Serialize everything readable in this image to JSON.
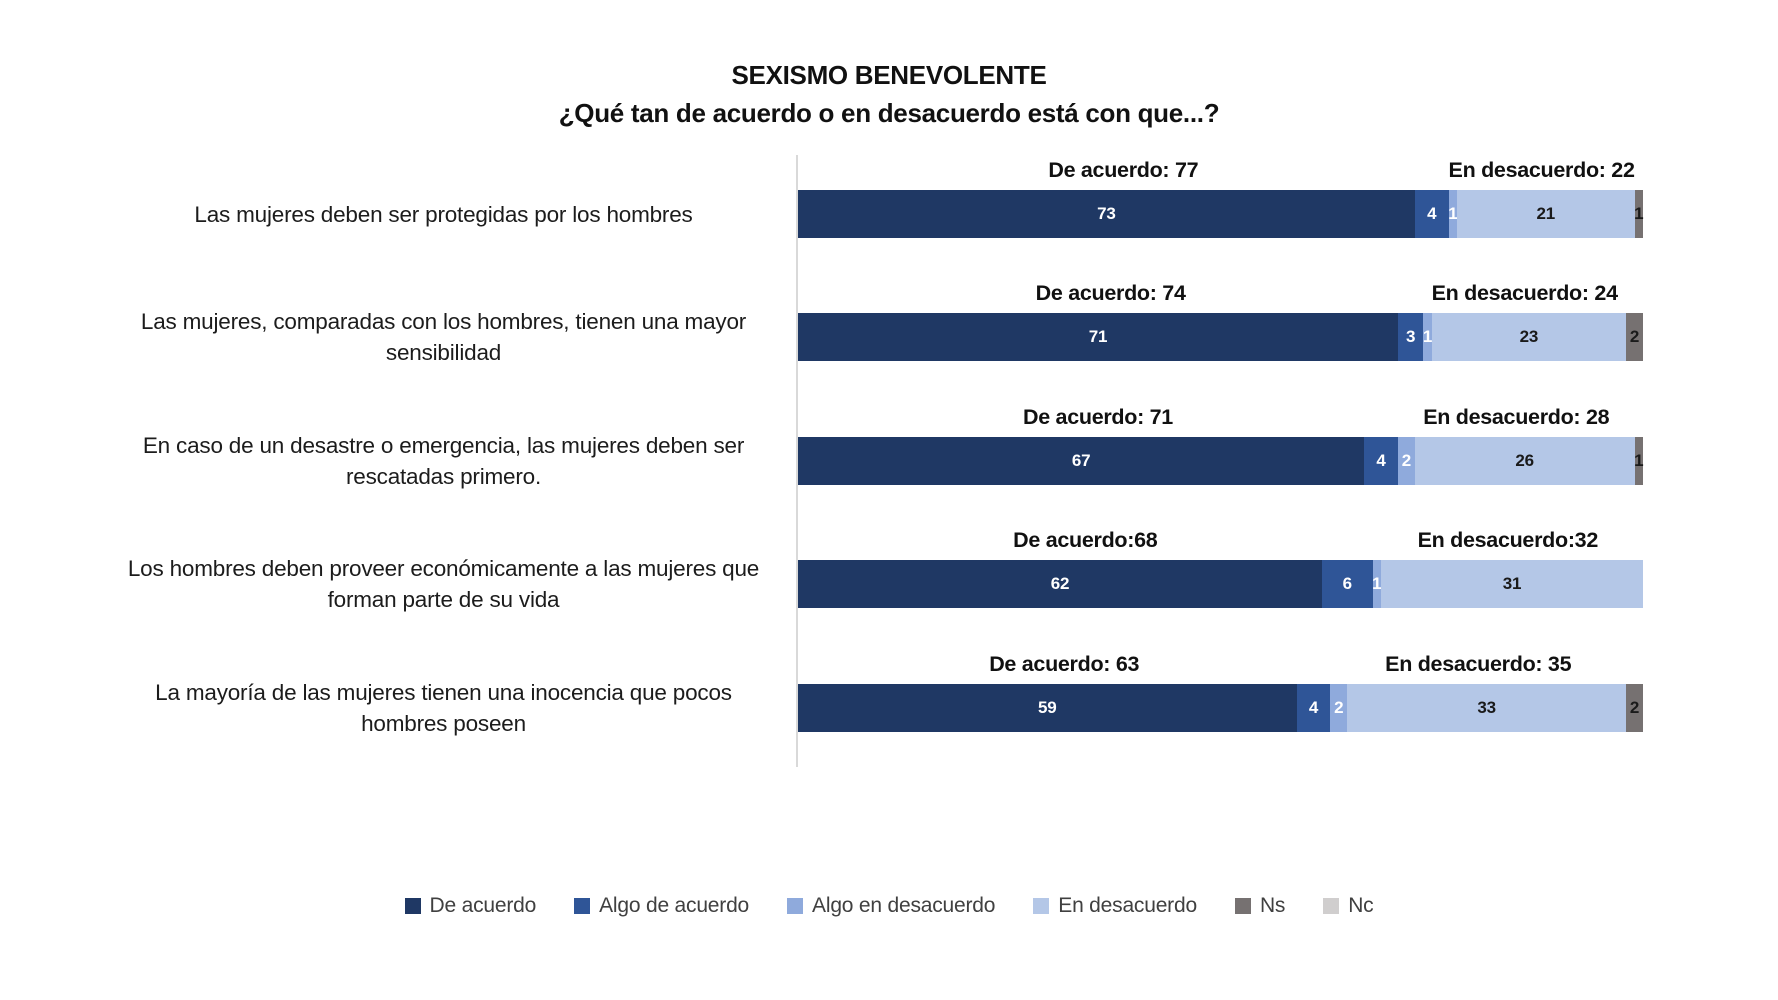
{
  "title": "SEXISMO BENEVOLENTE",
  "subtitle": "¿Qué tan de acuerdo o en desacuerdo está con que...?",
  "chart_data": {
    "type": "bar",
    "stacked": true,
    "orientation": "horizontal",
    "unit": "percent",
    "xlim": [
      0,
      100
    ],
    "grid": false,
    "legend_position": "bottom",
    "series": [
      {
        "key": "de_acuerdo",
        "label": "De acuerdo",
        "color": "#1F3864",
        "label_color": "#FFFFFF"
      },
      {
        "key": "algo_de_acuerdo",
        "label": "Algo de acuerdo",
        "color": "#2F5597",
        "label_color": "#FFFFFF"
      },
      {
        "key": "algo_en_desacuerdo",
        "label": "Algo en desacuerdo",
        "color": "#8FAADC",
        "label_color": "#FFFFFF"
      },
      {
        "key": "en_desacuerdo",
        "label": "En desacuerdo",
        "color": "#B4C7E7",
        "label_color": "#1A1A1A"
      },
      {
        "key": "ns",
        "label": "Ns",
        "color": "#767171",
        "label_color": "#1A1A1A"
      },
      {
        "key": "nc",
        "label": "Nc",
        "color": "#D0CECE",
        "label_color": "#1A1A1A"
      }
    ],
    "rows": [
      {
        "category": "Las mujeres deben ser protegidas por los hombres",
        "values": [
          73,
          4,
          1,
          21,
          1,
          0
        ],
        "agree_label": "De acuerdo: 77",
        "disagree_label": "En desacuerdo: 22",
        "agree_total": 77,
        "disagree_total": 22
      },
      {
        "category": "Las mujeres, comparadas con los hombres, tienen una mayor sensibilidad",
        "values": [
          71,
          3,
          1,
          23,
          2,
          0
        ],
        "agree_label": "De acuerdo: 74",
        "disagree_label": "En desacuerdo: 24",
        "agree_total": 74,
        "disagree_total": 24
      },
      {
        "category": "En caso de un desastre o emergencia, las mujeres deben ser rescatadas primero.",
        "values": [
          67,
          4,
          2,
          26,
          1,
          0
        ],
        "agree_label": "De acuerdo: 71",
        "disagree_label": "En desacuerdo: 28",
        "agree_total": 71,
        "disagree_total": 28
      },
      {
        "category": "Los hombres deben proveer económicamente a las mujeres que forman parte de su vida",
        "values": [
          62,
          6,
          1,
          31,
          0,
          0
        ],
        "agree_label": "De acuerdo:68",
        "disagree_label": "En desacuerdo:32",
        "agree_total": 68,
        "disagree_total": 32
      },
      {
        "category": "La mayoría de las mujeres tienen una inocencia que pocos hombres poseen",
        "values": [
          59,
          4,
          2,
          33,
          2,
          0
        ],
        "agree_label": "De acuerdo: 63",
        "disagree_label": "En desacuerdo: 35",
        "agree_total": 63,
        "disagree_total": 35
      }
    ]
  }
}
